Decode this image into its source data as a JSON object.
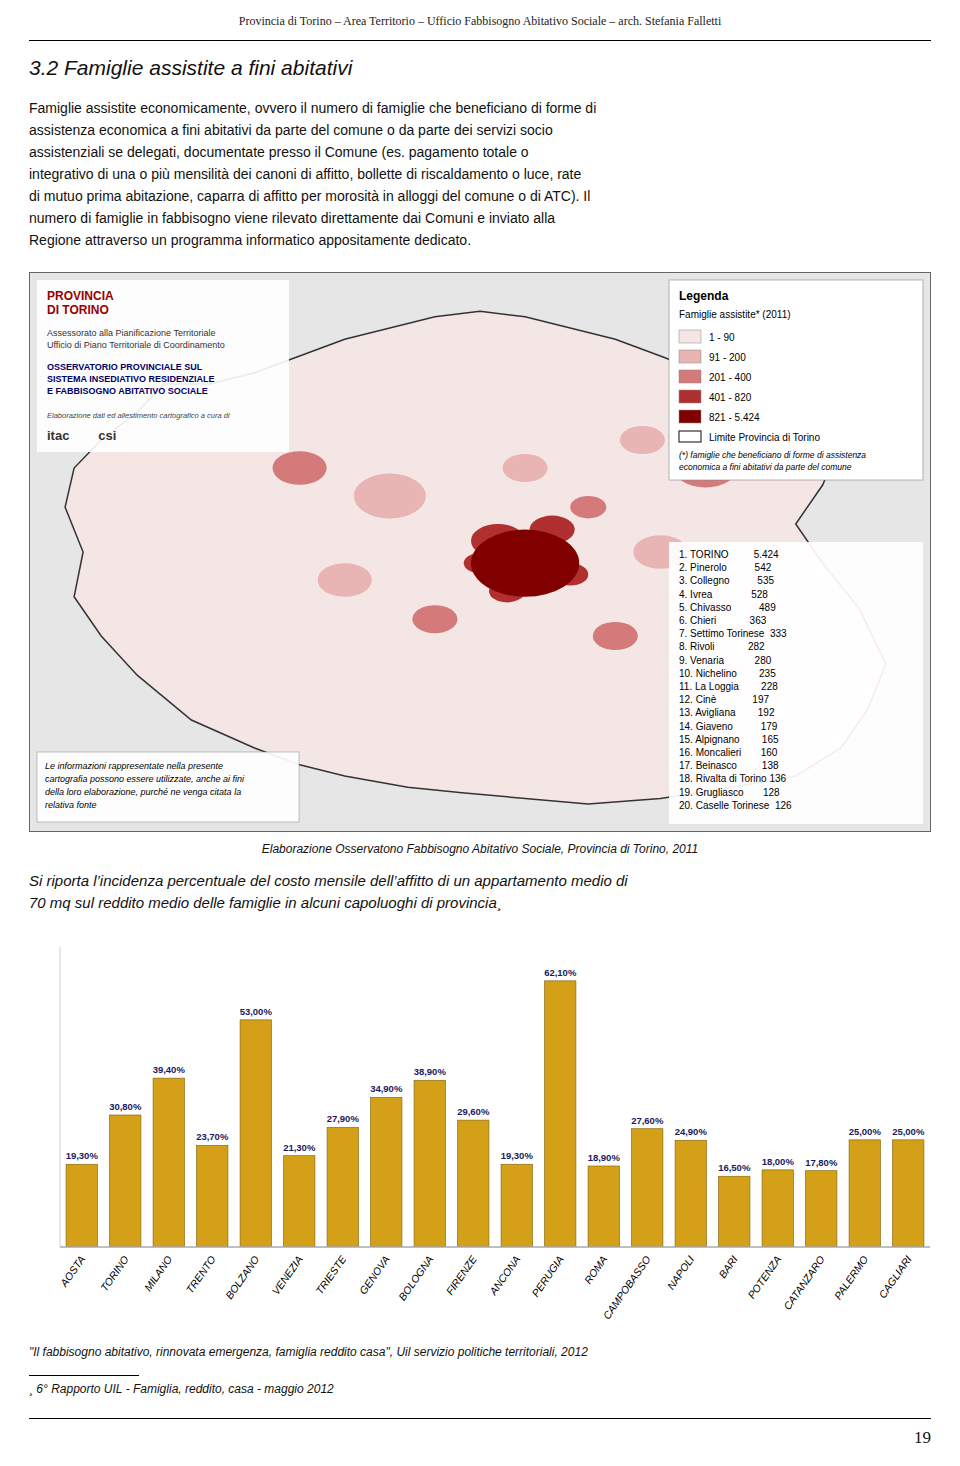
{
  "header": "Provincia di Torino – Area Territorio – Ufficio Fabbisogno Abitativo Sociale – arch. Stefania Falletti",
  "section_title": "3.2 Famiglie assistite a fini abitativi",
  "body_text": [
    "Famiglie assistite economicamente, ovvero il numero di famiglie che beneficiano di forme di",
    "assistenza economica a fini abitativi da parte del comune o da parte dei servizi socio",
    "assistenziali se delegati, documentate presso il Comune (es. pagamento totale o",
    "integrativo di una o più mensilità dei canoni di affitto, bollette di riscaldamento o luce, rate",
    "di mutuo prima abitazione, caparra di affitto per morosità in alloggi del comune o di ATC). Il",
    "numero di famiglie in fabbisogno viene rilevato direttamente dai Comuni e inviato alla",
    "Regione attraverso un programma informatico appositamente dedicato."
  ],
  "map": {
    "institution_lines": [
      "PROVINCIA",
      "DI TORINO"
    ],
    "office_lines": [
      "Assessorato alla Pianificazione Territoriale",
      "Ufficio di Piano Territoriale di Coordinamento"
    ],
    "observatory_lines": [
      "OSSERVATORIO PROVINCIALE SUL",
      "SISTEMA INSEDIATIVO RESIDENZIALE",
      "E FABBISOGNO ABITATIVO SOCIALE"
    ],
    "credits": "Elaborazione dati ed allestimento cartografico a cura di",
    "logos": "itac        csi",
    "legend_title": "Legenda",
    "legend_subtitle": "Famiglie assistite* (2011)",
    "legend_items": [
      "1 - 90",
      "91 - 200",
      "201 - 400",
      "401 - 820",
      "821 - 5.424"
    ],
    "legend_colors": [
      "#F5E6E6",
      "#E8B4B4",
      "#D47A7A",
      "#B03030",
      "#800000"
    ],
    "boundary_label": "Limite Provincia di Torino",
    "legend_note_lines": [
      "(*) famiglie che beneficiano di forme di assistenza",
      "economica a fini abitativi da parte del comune"
    ],
    "rankings": [
      "1. TORINO         5.424",
      "2. Pinerolo          542",
      "3. Collegno          535",
      "4. Ivrea              528",
      "5. Chivasso          489",
      "6. Chieri            363",
      "7. Settimo Torinese  333",
      "8. Rivoli            282",
      "9. Venaria           280",
      "10. Nichelino        235",
      "11. La Loggia        228",
      "12. Cinè             197",
      "13. Avigliana        192",
      "14. Giaveno          179",
      "15. Alpignano        165",
      "16. Moncalieri       160",
      "17. Beinasco         138",
      "18. Rivalta di Torino 136",
      "19. Grugliasco       128",
      "20. Caselle Torinese  126"
    ],
    "note_lines": [
      "Le informazioni rappresentate nella presente",
      "cartografia possono essere utilizzate, anche ai fini",
      "della loro elaborazione, purché ne venga citata la",
      "relativa fonte"
    ]
  },
  "map_caption": "Elaborazione Osservatono Fabbisogno Abitativo Sociale, Provincia di Torino, 2011",
  "intro_text": [
    "Si riporta l’incidenza percentuale del costo mensile dell’affitto di un appartamento medio di",
    "70 mq sul reddito medio delle famiglie in alcuni capoluoghi di provincia¸"
  ],
  "chart_data": {
    "type": "bar",
    "categories": [
      "AOSTA",
      "TORINO",
      "MILANO",
      "TRENTO",
      "BOLZANO",
      "VENEZIA",
      "TRIESTE",
      "GENOVA",
      "BOLOGNA",
      "FIRENZE",
      "ANCONA",
      "PERUGIA",
      "ROMA",
      "CAMPOBASSO",
      "NAPOLI",
      "BARI",
      "POTENZA",
      "CATANZARO",
      "PALERMO",
      "CAGLIARI"
    ],
    "values": [
      19.3,
      30.8,
      39.4,
      23.7,
      53.0,
      21.3,
      27.9,
      34.9,
      38.9,
      29.6,
      19.3,
      62.1,
      18.9,
      27.6,
      24.9,
      16.5,
      18.0,
      17.8,
      25.0,
      25.0
    ],
    "value_labels": [
      "19,30%",
      "30,80%",
      "39,40%",
      "23,70%",
      "53,00%",
      "21,30%",
      "27,90%",
      "34,90%",
      "38,90%",
      "29,60%",
      "19,30%",
      "62,10%",
      "18,90%",
      "27,60%",
      "24,90%",
      "16,50%",
      "18,00%",
      "17,80%",
      "25,00%",
      "25,00%"
    ],
    "color": "#D4A017",
    "ylim": [
      0,
      70
    ],
    "data_labels": true,
    "tick_labels": "x",
    "grid": false
  },
  "footnotes": [
    "\"Il fabbisogno abitativo, rinnovata emergenza, famiglia reddito casa\", Uil servizio politiche territoriali, 2012",
    "¸ 6° Rapporto UIL - Famiglia, reddito, casa - maggio 2012"
  ],
  "page_number": "19"
}
